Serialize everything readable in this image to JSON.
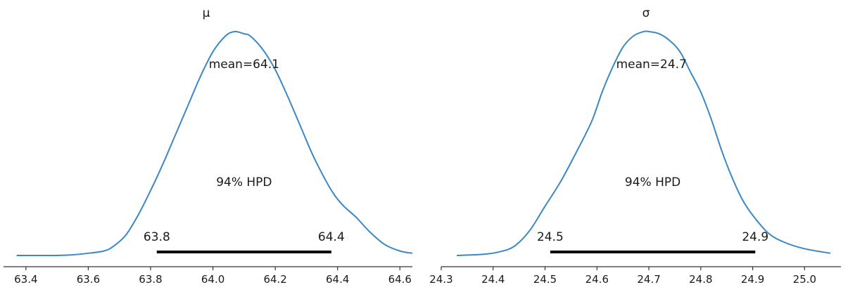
{
  "chart_data": [
    {
      "type": "line",
      "title": "μ",
      "xlim": [
        63.38,
        64.64
      ],
      "xticks": [
        "63.4",
        "63.6",
        "63.8",
        "64.0",
        "64.2",
        "64.4",
        "64.6"
      ],
      "xtick_values": [
        63.4,
        63.6,
        63.8,
        64.0,
        64.2,
        64.4,
        64.6
      ],
      "density_x": [
        63.37,
        63.45,
        63.5,
        63.55,
        63.6,
        63.65,
        63.68,
        63.72,
        63.76,
        63.8,
        63.84,
        63.88,
        63.92,
        63.96,
        64.0,
        64.04,
        64.07,
        64.1,
        64.12,
        64.16,
        64.2,
        64.24,
        64.28,
        64.32,
        64.36,
        64.39,
        64.42,
        64.46,
        64.5,
        64.55,
        64.6,
        64.64
      ],
      "density_y": [
        0.0,
        0.0,
        0.0,
        0.003,
        0.01,
        0.02,
        0.04,
        0.09,
        0.18,
        0.29,
        0.41,
        0.54,
        0.67,
        0.8,
        0.91,
        0.98,
        1.0,
        0.99,
        0.98,
        0.92,
        0.83,
        0.71,
        0.58,
        0.45,
        0.34,
        0.27,
        0.22,
        0.17,
        0.11,
        0.05,
        0.02,
        0.01
      ],
      "mean_label": "mean=64.1",
      "mean_x": 64.1,
      "hpd_label": "94% HPD",
      "hpd": [
        63.82,
        64.38
      ],
      "hpd_low_label": "63.8",
      "hpd_high_label": "64.4"
    },
    {
      "type": "line",
      "title": "σ",
      "xlim": [
        24.3,
        25.07
      ],
      "xticks": [
        "24.3",
        "24.4",
        "24.5",
        "24.6",
        "24.7",
        "24.8",
        "24.9",
        "25.0"
      ],
      "xtick_values": [
        24.3,
        24.4,
        24.5,
        24.6,
        24.7,
        24.8,
        24.9,
        25.0
      ],
      "density_x": [
        24.33,
        24.38,
        24.41,
        24.44,
        24.47,
        24.5,
        24.53,
        24.56,
        24.59,
        24.61,
        24.63,
        24.65,
        24.67,
        24.69,
        24.7,
        24.72,
        24.74,
        24.76,
        24.78,
        24.8,
        24.82,
        24.84,
        24.86,
        24.88,
        24.9,
        24.93,
        24.96,
        25.0,
        25.05
      ],
      "density_y": [
        0.0,
        0.005,
        0.015,
        0.04,
        0.11,
        0.22,
        0.33,
        0.46,
        0.6,
        0.73,
        0.84,
        0.93,
        0.98,
        1.0,
        1.0,
        0.99,
        0.96,
        0.91,
        0.82,
        0.73,
        0.61,
        0.47,
        0.35,
        0.25,
        0.18,
        0.1,
        0.06,
        0.03,
        0.01
      ],
      "mean_label": "mean=24.7",
      "mean_x": 24.705,
      "hpd_label": "94% HPD",
      "hpd": [
        24.51,
        24.905
      ],
      "hpd_low_label": "24.5",
      "hpd_high_label": "24.9"
    }
  ],
  "colors": {
    "density": "#3b88c4",
    "hpd_bar": "#000000",
    "axis": "#333333",
    "text": "#1a1a1a"
  }
}
